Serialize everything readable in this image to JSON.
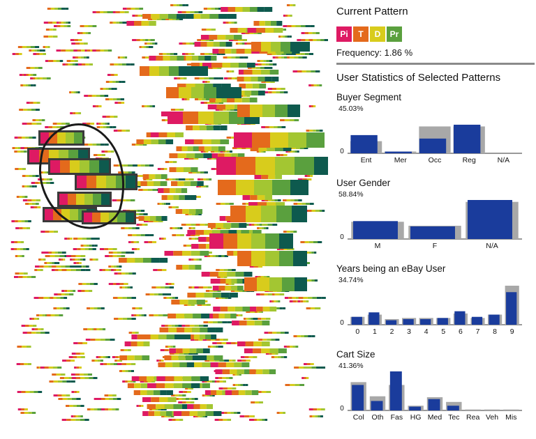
{
  "colors": {
    "Pi": "#de1a63",
    "T": "#e46a1c",
    "D": "#d8cc1c",
    "Pr": "#5aa03e",
    "bar_blue": "#1a3c9c",
    "bar_gray": "#a8a8a8"
  },
  "panel": {
    "current_pattern_title": "Current Pattern",
    "pattern_tokens": [
      {
        "label": "Pi",
        "color": "#de1a63"
      },
      {
        "label": "T",
        "color": "#e46a1c"
      },
      {
        "label": "D",
        "color": "#d8cc1c"
      },
      {
        "label": "Pr",
        "color": "#5aa03e"
      }
    ],
    "frequency_label": "Frequency:",
    "frequency_value": "1.86 %",
    "stats_title": "User Statistics of Selected Patterns"
  },
  "chart_data": [
    {
      "type": "bar",
      "title": "Buyer Segment",
      "max_label": "45.03%",
      "zero_label": "0",
      "categories": [
        "Ent",
        "Mer",
        "Occ",
        "Reg",
        "N/A"
      ],
      "series": [
        {
          "values": [
            14,
            2,
            31,
            31,
            0
          ]
        },
        {
          "values": [
            21,
            2,
            17,
            33,
            0
          ]
        }
      ],
      "ylim": [
        0,
        45.03
      ]
    },
    {
      "type": "bar",
      "title": "User Gender",
      "max_label": "58.84%",
      "zero_label": "0",
      "categories": [
        "M",
        "F",
        "N/A"
      ],
      "series": [
        {
          "values": [
            26,
            20,
            56
          ]
        },
        {
          "values": [
            27,
            19,
            58.84
          ]
        }
      ],
      "ylim": [
        0,
        58.84
      ]
    },
    {
      "type": "bar",
      "title": "Years being an eBay User",
      "max_label": "34.74%",
      "zero_label": "0",
      "categories": [
        "0",
        "1",
        "2",
        "3",
        "4",
        "5",
        "6",
        "7",
        "8",
        "9"
      ],
      "series": [
        {
          "values": [
            7,
            9,
            5,
            6,
            6,
            6,
            10,
            6,
            9,
            34.74
          ]
        },
        {
          "values": [
            7,
            11,
            4,
            5,
            5,
            6,
            12,
            7,
            9,
            29
          ]
        }
      ],
      "ylim": [
        0,
        34.74
      ]
    },
    {
      "type": "bar",
      "title": "Cart Size",
      "max_label": "41.36%",
      "zero_label": "0",
      "categories": [
        "Col",
        "Oth",
        "Fas",
        "HG",
        "Med",
        "Tec",
        "Rea",
        "Veh",
        "Mis"
      ],
      "series": [
        {
          "values": [
            30,
            15,
            27,
            5,
            14,
            9,
            1,
            1,
            1
          ]
        },
        {
          "values": [
            27,
            10,
            41.36,
            4,
            12,
            5,
            0,
            0,
            0
          ]
        }
      ],
      "ylim": [
        0,
        41.36
      ]
    }
  ]
}
